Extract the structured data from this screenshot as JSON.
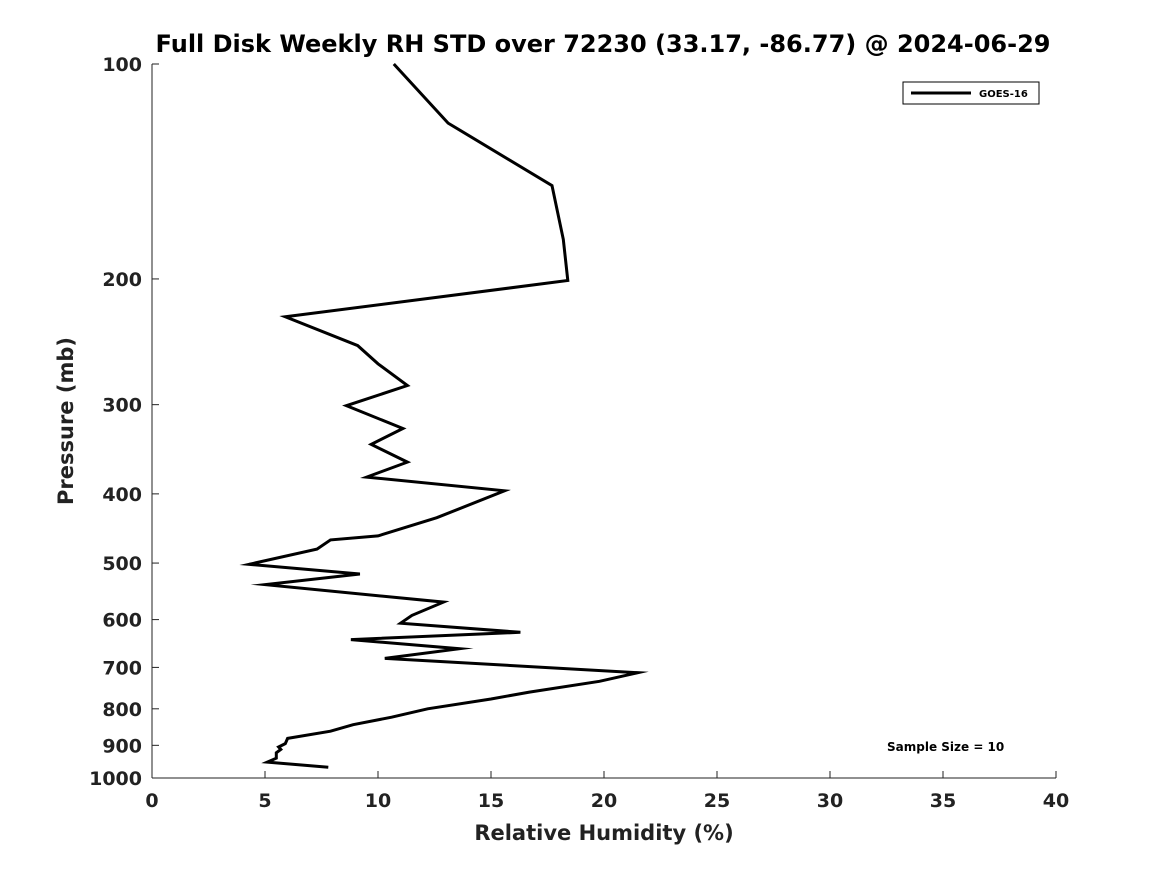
{
  "chart_data": {
    "type": "line",
    "title": "Full Disk Weekly RH STD over 72230 (33.17, -86.77) @ 2024-06-29",
    "xlabel": "Relative Humidity (%)",
    "ylabel": "Pressure (mb)",
    "xlim": [
      0,
      40
    ],
    "ylim": [
      1000,
      100
    ],
    "y_scale": "log",
    "x_ticks": [
      0,
      5,
      10,
      15,
      20,
      25,
      30,
      35,
      40
    ],
    "y_ticks": [
      100,
      200,
      300,
      400,
      500,
      600,
      700,
      800,
      900,
      1000
    ],
    "grid": false,
    "legend_position": "top-right",
    "annotation": "Sample Size = 10",
    "series": [
      {
        "name": "GOES-16",
        "color": "#000000",
        "x": [
          10.7,
          13.1,
          17.7,
          18.2,
          18.4,
          5.9,
          9.1,
          10.0,
          11.3,
          8.6,
          11.1,
          9.7,
          11.3,
          9.5,
          15.6,
          12.6,
          10.0,
          7.9,
          7.3,
          4.3,
          9.2,
          5.0,
          12.9,
          11.5,
          11.0,
          16.3,
          8.8,
          13.6,
          10.3,
          21.5,
          19.8,
          16.7,
          15.0,
          12.2,
          10.6,
          8.9,
          7.9,
          6.0,
          5.9,
          5.6,
          5.7,
          5.5,
          5.5,
          5.1,
          7.8
        ],
        "y": [
          100,
          121,
          148,
          176,
          201,
          226,
          248,
          263,
          282,
          301,
          324,
          341,
          361,
          379,
          396,
          432,
          458,
          464,
          478,
          502,
          518,
          536,
          567,
          592,
          607,
          625,
          640,
          659,
          680,
          712,
          732,
          758,
          775,
          800,
          822,
          842,
          860,
          880,
          895,
          905,
          912,
          922,
          938,
          950,
          966
        ]
      }
    ]
  }
}
